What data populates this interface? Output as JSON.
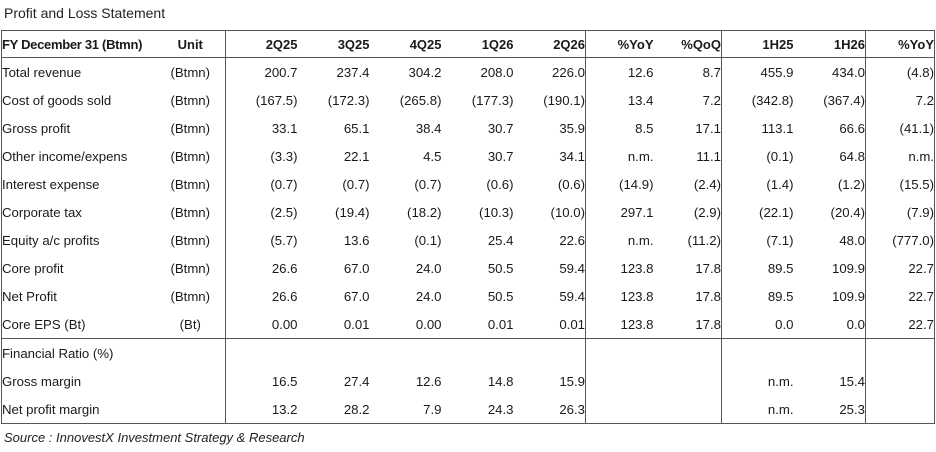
{
  "title": "Profit and Loss Statement",
  "header": [
    "FY December 31 (Btmn)",
    "Unit",
    "2Q25",
    "3Q25",
    "4Q25",
    "1Q26",
    "2Q26",
    "%YoY",
    "%QoQ",
    "1H25",
    "1H26",
    "%YoY"
  ],
  "rows": [
    {
      "label": "Total revenue",
      "unit": "(Btmn)",
      "values": [
        "200.7",
        "237.4",
        "304.2",
        "208.0",
        "226.0",
        "12.6",
        "8.7",
        "455.9",
        "434.0",
        "(4.8)"
      ]
    },
    {
      "label": "Cost of goods sold",
      "unit": "(Btmn)",
      "values": [
        "(167.5)",
        "(172.3)",
        "(265.8)",
        "(177.3)",
        "(190.1)",
        "13.4",
        "7.2",
        "(342.8)",
        "(367.4)",
        "7.2"
      ]
    },
    {
      "label": "Gross profit",
      "unit": "(Btmn)",
      "values": [
        "33.1",
        "65.1",
        "38.4",
        "30.7",
        "35.9",
        "8.5",
        "17.1",
        "113.1",
        "66.6",
        "(41.1)"
      ]
    },
    {
      "label": "Other income/expens",
      "unit": "(Btmn)",
      "values": [
        "(3.3)",
        "22.1",
        "4.5",
        "30.7",
        "34.1",
        "n.m.",
        "11.1",
        "(0.1)",
        "64.8",
        "n.m."
      ]
    },
    {
      "label": "Interest expense",
      "unit": "(Btmn)",
      "values": [
        "(0.7)",
        "(0.7)",
        "(0.7)",
        "(0.6)",
        "(0.6)",
        "(14.9)",
        "(2.4)",
        "(1.4)",
        "(1.2)",
        "(15.5)"
      ]
    },
    {
      "label": "Corporate tax",
      "unit": "(Btmn)",
      "values": [
        "(2.5)",
        "(19.4)",
        "(18.2)",
        "(10.3)",
        "(10.0)",
        "297.1",
        "(2.9)",
        "(22.1)",
        "(20.4)",
        "(7.9)"
      ]
    },
    {
      "label": "Equity a/c profits",
      "unit": "(Btmn)",
      "values": [
        "(5.7)",
        "13.6",
        "(0.1)",
        "25.4",
        "22.6",
        "n.m.",
        "(11.2)",
        "(7.1)",
        "48.0",
        "(777.0)"
      ]
    },
    {
      "label": "Core profit",
      "unit": "(Btmn)",
      "values": [
        "26.6",
        "67.0",
        "24.0",
        "50.5",
        "59.4",
        "123.8",
        "17.8",
        "89.5",
        "109.9",
        "22.7"
      ]
    },
    {
      "label": "Net Profit",
      "unit": "(Btmn)",
      "values": [
        "26.6",
        "67.0",
        "24.0",
        "50.5",
        "59.4",
        "123.8",
        "17.8",
        "89.5",
        "109.9",
        "22.7"
      ]
    },
    {
      "label": "Core EPS (Bt)",
      "unit": "(Bt)",
      "values": [
        "0.00",
        "0.01",
        "0.00",
        "0.01",
        "0.01",
        "123.8",
        "17.8",
        "0.0",
        "0.0",
        "22.7"
      ]
    }
  ],
  "ratio_section": {
    "label": "Financial Ratio (%)",
    "rows": [
      {
        "label": "Gross margin",
        "unit": "",
        "values": [
          "16.5",
          "27.4",
          "12.6",
          "14.8",
          "15.9",
          "",
          "",
          "n.m.",
          "15.4",
          ""
        ]
      },
      {
        "label": "Net profit margin",
        "unit": "",
        "values": [
          "13.2",
          "28.2",
          "7.9",
          "24.3",
          "26.3",
          "",
          "",
          "n.m.",
          "25.3",
          ""
        ]
      }
    ]
  },
  "source": "Source : InnovestX Investment Strategy & Research"
}
